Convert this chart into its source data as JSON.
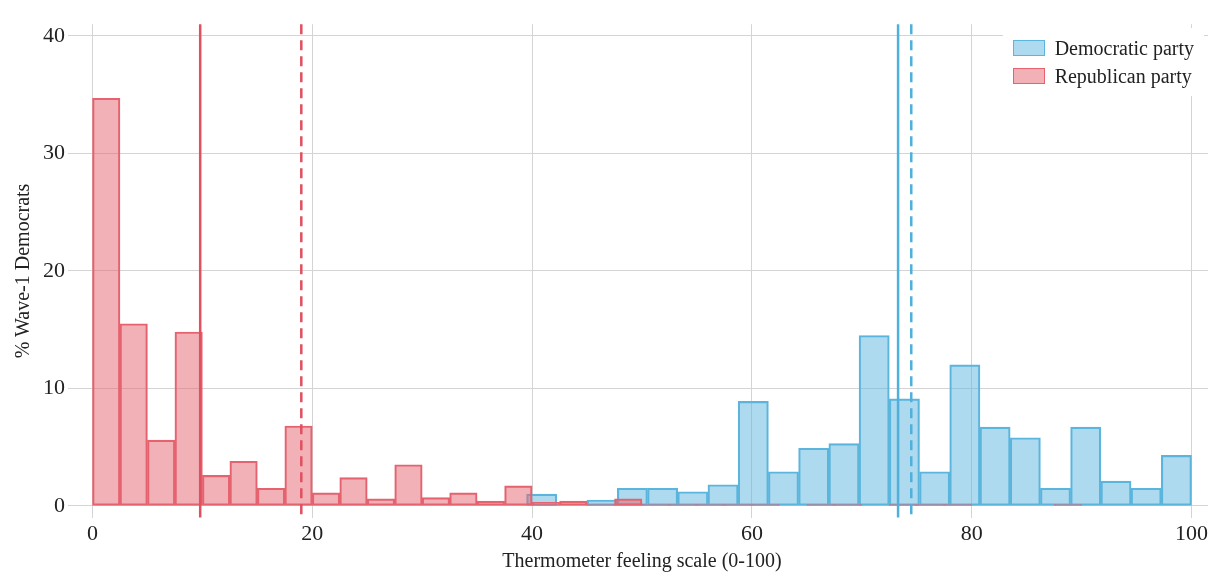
{
  "chart_data": {
    "type": "bar",
    "xlabel": "Thermometer feeling scale (0-100)",
    "ylabel": "% Wave-1 Democrats",
    "xlim": [
      -1.5,
      101.5
    ],
    "xticks": [
      0,
      20,
      40,
      60,
      80,
      100
    ],
    "ylim": [
      -1,
      41
    ],
    "yticks": [
      0,
      10,
      20,
      30,
      40
    ],
    "grid": true,
    "legend": "top right",
    "series": [
      {
        "name": "Democratic party",
        "color": "#5bb5dd",
        "x": [
          2.375,
          5.125,
          7.875,
          10.625,
          13.375,
          16.125,
          18.875,
          21.625,
          24.375,
          27.125,
          29.875,
          32.625,
          35.375,
          38.125,
          40.875,
          43.625,
          46.375,
          49.125,
          51.875,
          54.625,
          57.375,
          60.125,
          62.875,
          65.625,
          68.375,
          71.125,
          73.875,
          76.625,
          79.375,
          82.125,
          84.875,
          87.625,
          90.375,
          93.125,
          95.875,
          98.625
        ],
        "values": [
          0,
          0,
          0,
          0,
          0,
          0,
          0,
          0,
          null,
          0,
          null,
          0,
          null,
          null,
          1.0,
          null,
          0.5,
          1.5,
          1.5,
          1.2,
          1.8,
          8.9,
          2.9,
          4.9,
          5.3,
          14.5,
          9.1,
          2.9,
          12.0,
          6.7,
          5.8,
          1.5,
          6.7,
          2.1,
          1.5,
          4.3
        ]
      },
      {
        "name": "Republican party",
        "color": "#e5636f",
        "x": [
          1.25,
          3.75,
          6.25,
          8.75,
          11.25,
          13.75,
          16.25,
          18.75,
          21.25,
          23.75,
          26.25,
          28.75,
          31.25,
          33.75,
          36.25,
          38.75,
          41.25,
          43.75,
          46.25,
          48.75,
          51.25,
          53.75,
          56.25,
          58.75,
          61.25,
          63.75,
          66.25,
          68.75,
          71.25,
          73.75,
          76.25,
          78.75,
          81.25,
          83.75,
          86.25,
          88.75,
          91.25,
          93.75,
          96.25,
          98.75
        ],
        "values": [
          34.7,
          15.5,
          5.6,
          14.8,
          2.6,
          3.8,
          1.5,
          6.8,
          1.1,
          2.4,
          0.6,
          3.5,
          0.7,
          1.1,
          0.4,
          1.7,
          0.3,
          0.4,
          0.1,
          0.6,
          0.1,
          0.1,
          0.1,
          0.1,
          0.1,
          0,
          0.1,
          0.1,
          0,
          0.1,
          0.1,
          0.1,
          0,
          0,
          0,
          0.1,
          0,
          0,
          0,
          0
        ]
      }
    ],
    "ref_lines": [
      {
        "axis": "x",
        "value": 9.8,
        "color": "#e0505f",
        "line_style": "solid"
      },
      {
        "axis": "x",
        "value": 19.0,
        "color": "#e0505f",
        "line_style": "dashed"
      },
      {
        "axis": "x",
        "value": 73.3,
        "color": "#4fb0dc",
        "line_style": "solid"
      },
      {
        "axis": "x",
        "value": 74.5,
        "color": "#4fb0dc",
        "line_style": "dashed"
      }
    ]
  }
}
